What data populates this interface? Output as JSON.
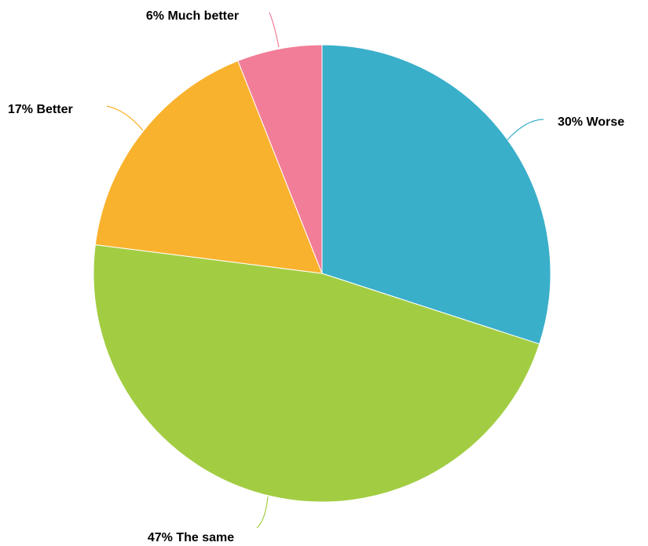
{
  "chart_data": {
    "type": "pie",
    "title": "",
    "start_angle_deg": 0,
    "direction": "clockwise",
    "slices": [
      {
        "label": "Worse",
        "value": 30,
        "display": "30% Worse",
        "color": "#3aafca"
      },
      {
        "label": "The same",
        "value": 47,
        "display": "47% The same",
        "color": "#a2cd43"
      },
      {
        "label": "Better",
        "value": 17,
        "display": "17% Better",
        "color": "#f9b22e"
      },
      {
        "label": "Much better",
        "value": 6,
        "display": "6% Much better",
        "color": "#f27d98"
      }
    ],
    "legend": "none",
    "data_labels": "outside with leader lines"
  }
}
